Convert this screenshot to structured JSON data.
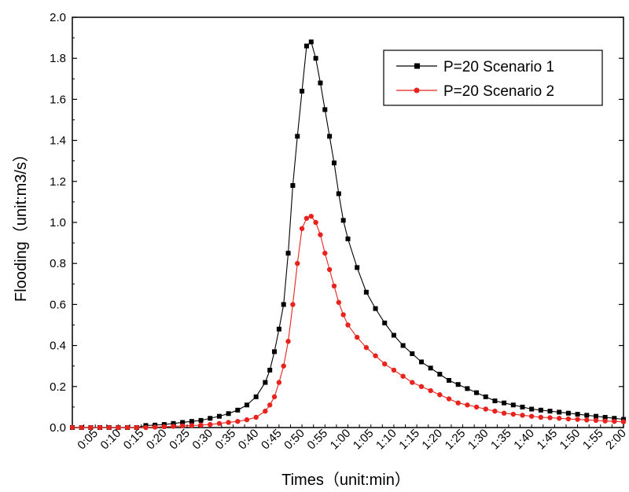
{
  "chart_data": {
    "type": "line",
    "xlabel": "Times（unit:min）",
    "ylabel": "Flooding（unit:m3/s）",
    "ylim": [
      0,
      2.0
    ],
    "yticks": [
      "0.0",
      "0.2",
      "0.4",
      "0.6",
      "0.8",
      "1.0",
      "1.2",
      "1.4",
      "1.6",
      "1.8",
      "2.0"
    ],
    "xlim_minutes": [
      0,
      120
    ],
    "xticks": [
      "0:05",
      "0:10",
      "0:15",
      "0:20",
      "0:25",
      "0:30",
      "0:35",
      "0:40",
      "0:45",
      "0:50",
      "0:55",
      "1:00",
      "1:05",
      "1:10",
      "1:15",
      "1:20",
      "1:25",
      "1:30",
      "1:35",
      "1:40",
      "1:45",
      "1:50",
      "1:55",
      "2:00"
    ],
    "legend_position": "top-right",
    "grid": false,
    "series": [
      {
        "name": "P=20 Scenario 1",
        "color": "#000000",
        "marker": "square",
        "x": [
          0,
          2,
          4,
          6,
          8,
          10,
          12,
          14,
          16,
          18,
          20,
          22,
          24,
          26,
          28,
          30,
          32,
          34,
          36,
          38,
          40,
          42,
          43,
          44,
          45,
          46,
          47,
          48,
          49,
          50,
          51,
          52,
          53,
          54,
          55,
          56,
          57,
          58,
          59,
          60,
          62,
          64,
          66,
          68,
          70,
          72,
          74,
          76,
          78,
          80,
          82,
          84,
          86,
          88,
          90,
          92,
          94,
          96,
          98,
          100,
          102,
          104,
          106,
          108,
          110,
          112,
          114,
          116,
          118,
          120
        ],
        "y": [
          0,
          0,
          0,
          0,
          0,
          0,
          0,
          0,
          0.01,
          0.012,
          0.015,
          0.02,
          0.025,
          0.03,
          0.035,
          0.045,
          0.055,
          0.068,
          0.085,
          0.11,
          0.15,
          0.22,
          0.28,
          0.37,
          0.48,
          0.6,
          0.85,
          1.18,
          1.42,
          1.64,
          1.86,
          1.88,
          1.8,
          1.68,
          1.55,
          1.42,
          1.29,
          1.14,
          1.01,
          0.92,
          0.78,
          0.66,
          0.58,
          0.51,
          0.45,
          0.4,
          0.36,
          0.32,
          0.29,
          0.26,
          0.23,
          0.21,
          0.19,
          0.17,
          0.15,
          0.13,
          0.12,
          0.11,
          0.1,
          0.09,
          0.085,
          0.08,
          0.075,
          0.07,
          0.065,
          0.06,
          0.055,
          0.05,
          0.045,
          0.04
        ]
      },
      {
        "name": "P=20 Scenario 2",
        "color": "#e8231e",
        "marker": "circle",
        "x": [
          0,
          2,
          4,
          6,
          8,
          10,
          12,
          14,
          16,
          18,
          20,
          22,
          24,
          26,
          28,
          30,
          32,
          34,
          36,
          38,
          40,
          42,
          43,
          44,
          45,
          46,
          47,
          48,
          49,
          50,
          51,
          52,
          53,
          54,
          55,
          56,
          57,
          58,
          59,
          60,
          62,
          64,
          66,
          68,
          70,
          72,
          74,
          76,
          78,
          80,
          82,
          84,
          86,
          88,
          90,
          92,
          94,
          96,
          98,
          100,
          102,
          104,
          106,
          108,
          110,
          112,
          114,
          116,
          118,
          120
        ],
        "y": [
          0,
          0,
          0,
          0,
          0,
          0,
          0,
          0,
          0,
          0.002,
          0.004,
          0.006,
          0.008,
          0.01,
          0.012,
          0.015,
          0.02,
          0.025,
          0.03,
          0.038,
          0.05,
          0.08,
          0.11,
          0.15,
          0.22,
          0.3,
          0.42,
          0.6,
          0.8,
          0.97,
          1.02,
          1.03,
          1.0,
          0.94,
          0.85,
          0.77,
          0.69,
          0.61,
          0.55,
          0.5,
          0.44,
          0.39,
          0.35,
          0.31,
          0.28,
          0.25,
          0.22,
          0.2,
          0.18,
          0.16,
          0.14,
          0.12,
          0.11,
          0.1,
          0.09,
          0.08,
          0.07,
          0.065,
          0.06,
          0.055,
          0.05,
          0.048,
          0.045,
          0.042,
          0.04,
          0.037,
          0.035,
          0.032,
          0.03,
          0.028
        ]
      }
    ]
  }
}
